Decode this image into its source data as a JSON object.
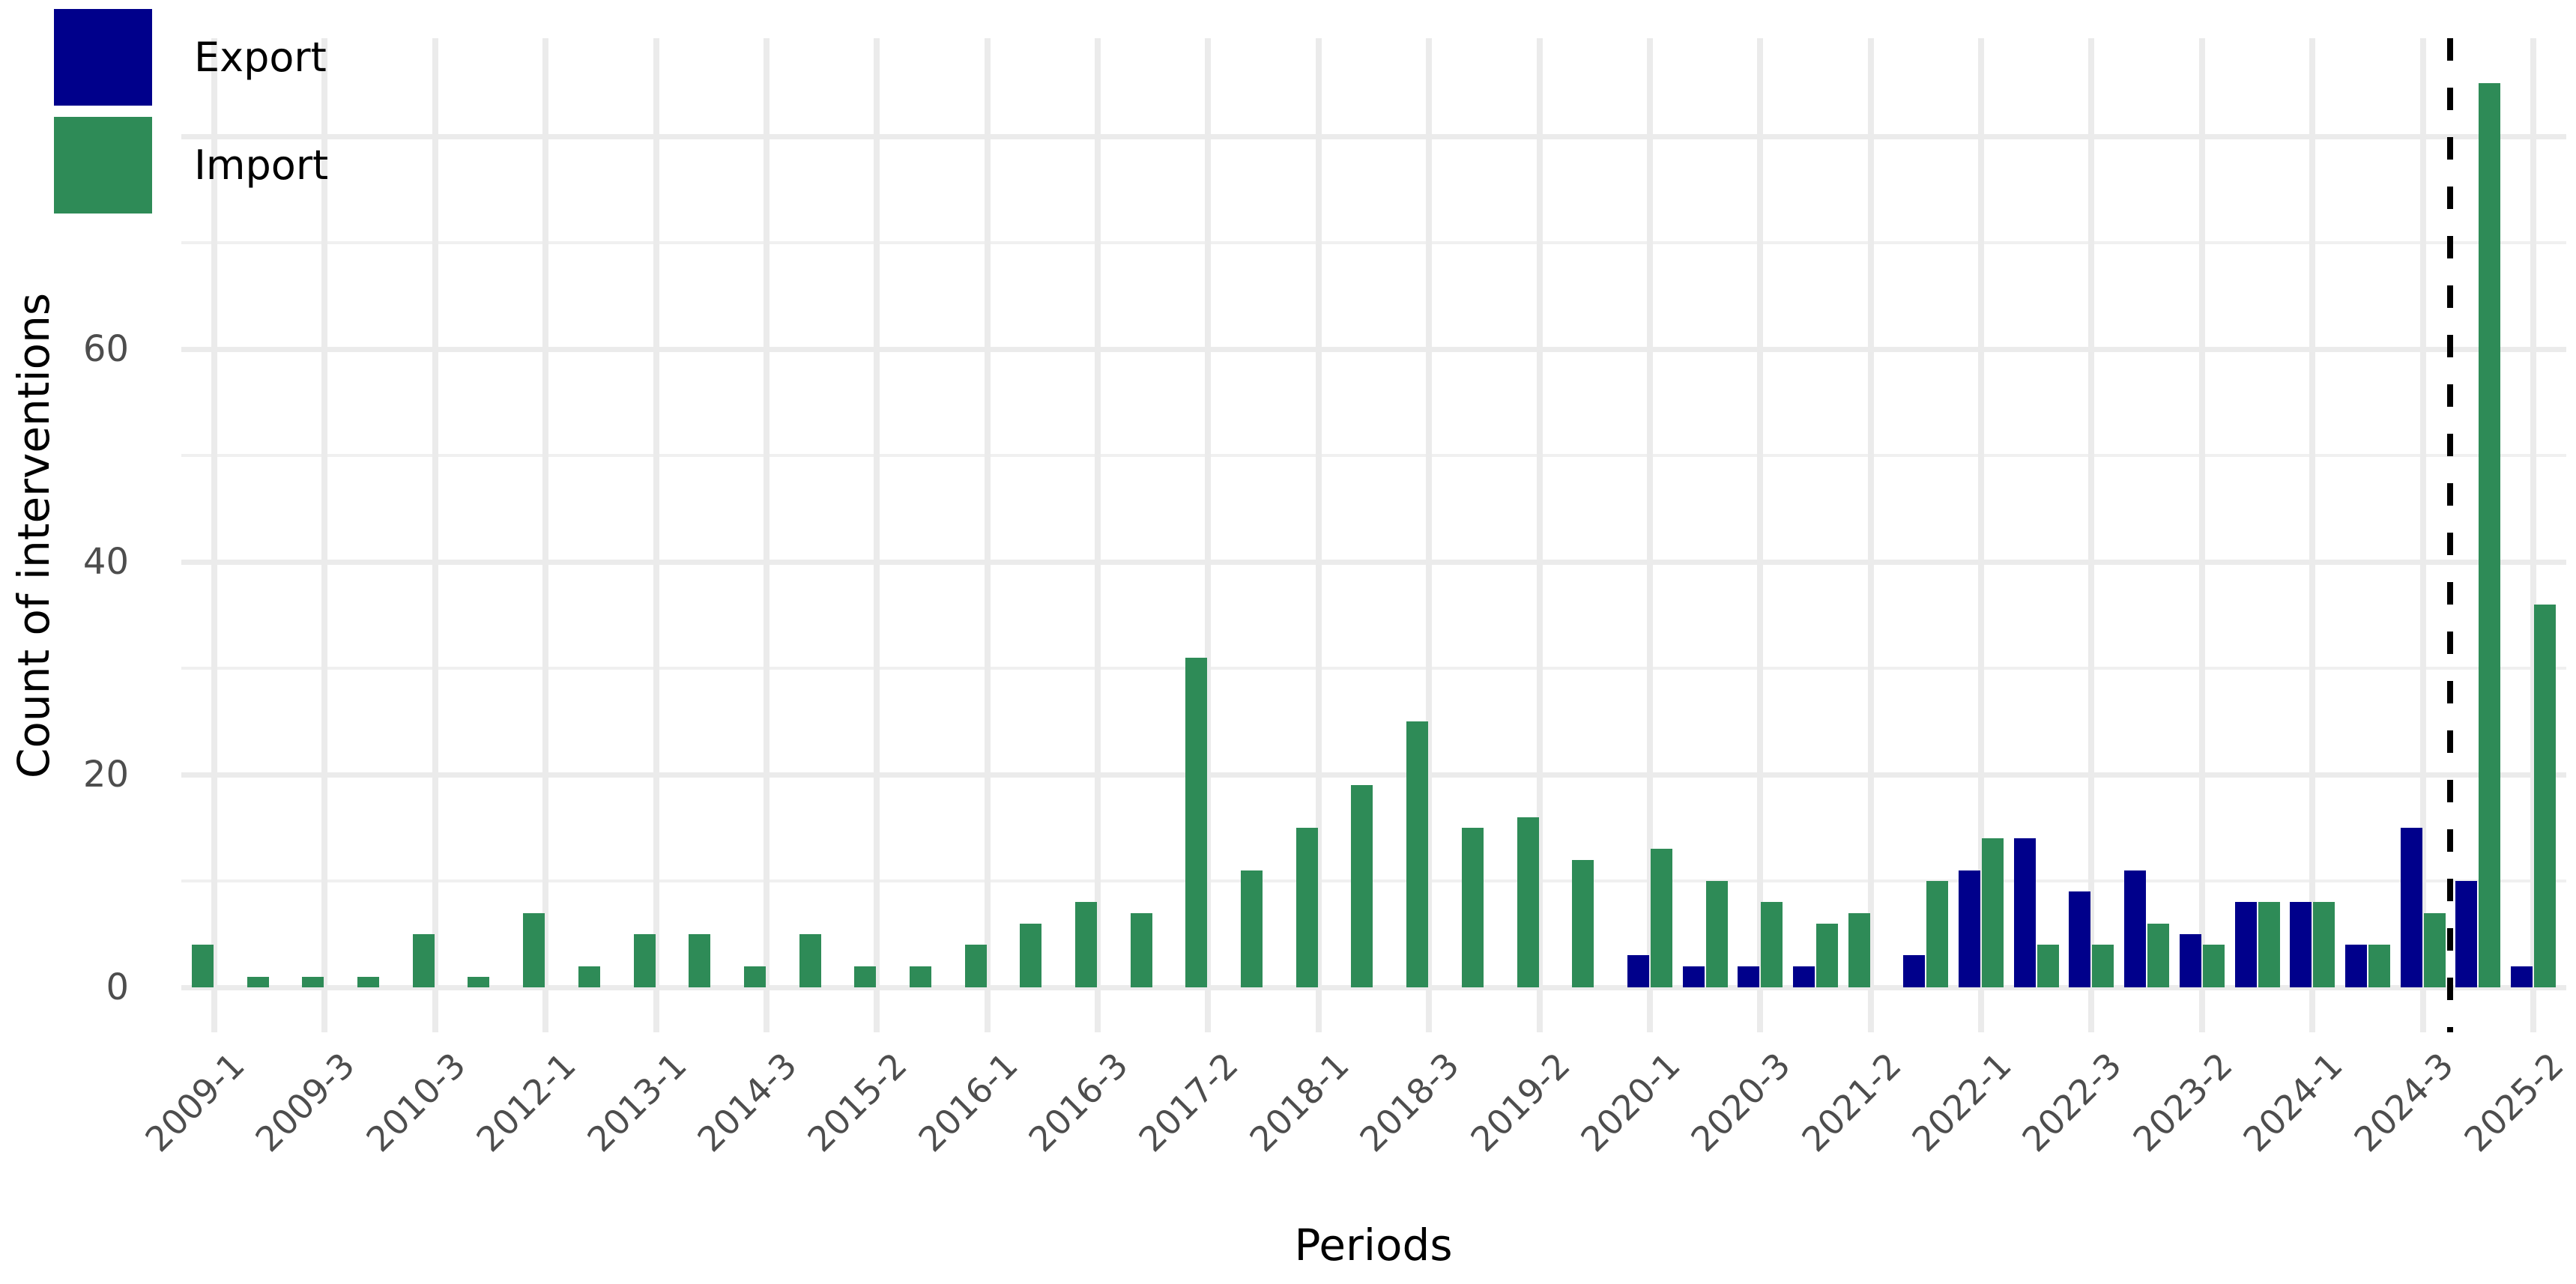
{
  "chart_data": {
    "type": "bar",
    "title": "",
    "xlabel": "Periods",
    "ylabel": "Count of interventions",
    "y_ticks": [
      0,
      20,
      40,
      60
    ],
    "ylim": [
      0,
      89
    ],
    "grid": true,
    "legend_position": "top-left-inside",
    "bar_layout": "dodged",
    "categories": [
      "2009-1",
      "",
      "2009-3",
      "",
      "2010-3",
      "",
      "2012-1",
      "",
      "2013-1",
      "",
      "2014-3",
      "",
      "2015-2",
      "",
      "2016-1",
      "",
      "2016-3",
      "",
      "2017-2",
      "",
      "2018-1",
      "",
      "2018-3",
      "",
      "2019-2",
      "",
      "2020-1",
      "",
      "2020-3",
      "",
      "2021-2",
      "",
      "2022-1",
      "",
      "2022-3",
      "",
      "2023-2",
      "",
      "2024-1",
      "",
      "2024-3",
      "",
      "2025-2"
    ],
    "series": [
      {
        "name": "Export",
        "color": "#00008B",
        "values": [
          0,
          0,
          0,
          0,
          0,
          0,
          0,
          0,
          0,
          0,
          0,
          0,
          0,
          0,
          0,
          0,
          0,
          0,
          0,
          0,
          0,
          0,
          0,
          0,
          0,
          0,
          3,
          2,
          2,
          2,
          0,
          3,
          11,
          14,
          9,
          11,
          5,
          8,
          8,
          4,
          15,
          10,
          2
        ]
      },
      {
        "name": "Import",
        "color": "#2E8B57",
        "values": [
          4,
          1,
          1,
          1,
          5,
          1,
          7,
          2,
          5,
          5,
          2,
          5,
          2,
          2,
          4,
          6,
          8,
          7,
          31,
          11,
          15,
          19,
          25,
          15,
          16,
          12,
          13,
          10,
          8,
          6,
          7,
          10,
          14,
          4,
          4,
          6,
          4,
          8,
          8,
          4,
          7,
          85,
          36
        ]
      }
    ],
    "vline": {
      "style": "dashed",
      "color": "#000000",
      "after_category_index": 40
    }
  },
  "colors": {
    "export": "#00008B",
    "import": "#2E8B57",
    "grid_major": "#EBEBEB",
    "grid_minor": "#F0F0F0",
    "axis_text": "#4D4D4D",
    "background": "#FFFFFF"
  }
}
